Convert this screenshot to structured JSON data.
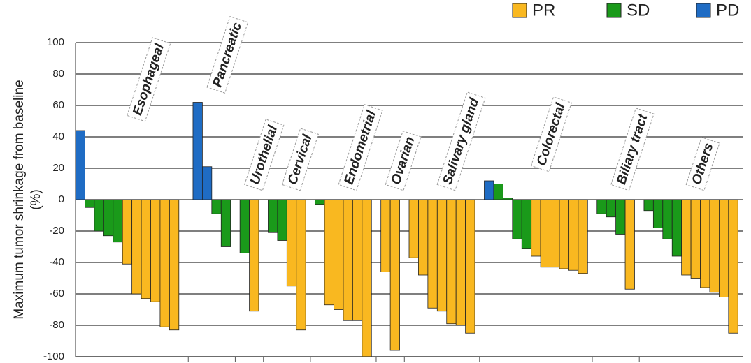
{
  "chart_data": {
    "type": "waterfall",
    "y_label": [
      "Maximum tumor shrinkage from baseline",
      "(%)"
    ],
    "series": [
      {
        "name": "PR",
        "color": "#f9b820"
      },
      {
        "name": "SD",
        "color": "#1a9a1a"
      },
      {
        "name": "PD",
        "color": "#1f6cc4"
      }
    ],
    "groups": [
      {
        "label": "Esophageal",
        "values": [
          44,
          -5,
          -20,
          -23,
          -27,
          -41,
          -60,
          -63,
          -65,
          -81,
          -83
        ],
        "series": [
          2,
          1,
          1,
          1,
          1,
          0,
          0,
          0,
          0,
          0,
          0
        ]
      },
      {
        "label": "Pancreatic",
        "values": [
          62,
          21,
          -9,
          -30
        ],
        "series": [
          2,
          2,
          1,
          1
        ]
      },
      {
        "label": "Urothelial",
        "values": [
          -34,
          -71
        ],
        "series": [
          1,
          0
        ]
      },
      {
        "label": "Cervical",
        "values": [
          -21,
          -26,
          -55,
          -83
        ],
        "series": [
          1,
          1,
          0,
          0
        ]
      },
      {
        "label": "Endometrial",
        "values": [
          -3,
          -67,
          -70,
          -77,
          -77,
          -100
        ],
        "series": [
          1,
          0,
          0,
          0,
          0,
          0
        ]
      },
      {
        "label": "Ovarian",
        "values": [
          -46,
          -96
        ],
        "series": [
          0,
          0
        ]
      },
      {
        "label": "Salivary gland",
        "values": [
          -37,
          -48,
          -69,
          -71,
          -79,
          -80,
          -85
        ],
        "series": [
          0,
          0,
          0,
          0,
          0,
          0,
          0
        ]
      },
      {
        "label": "Colorectal",
        "values": [
          12,
          10,
          1,
          -25,
          -31,
          -36,
          -43,
          -43,
          -44,
          -45,
          -47
        ],
        "series": [
          2,
          1,
          1,
          1,
          1,
          0,
          0,
          0,
          0,
          0,
          0
        ]
      },
      {
        "label": "Biliary tract",
        "values": [
          -9,
          -11,
          -22,
          -57
        ],
        "series": [
          1,
          1,
          1,
          0
        ]
      },
      {
        "label": "Others",
        "values": [
          -7,
          -18,
          -25,
          -36,
          -48,
          -50,
          -56,
          -59,
          -62,
          -85
        ],
        "series": [
          1,
          1,
          1,
          1,
          0,
          0,
          0,
          0,
          0,
          0
        ]
      }
    ],
    "ylim": [
      -100,
      100
    ],
    "yticks": [
      -100,
      -80,
      -60,
      -40,
      -20,
      0,
      20,
      40,
      60,
      80,
      100
    ],
    "grid": true
  }
}
